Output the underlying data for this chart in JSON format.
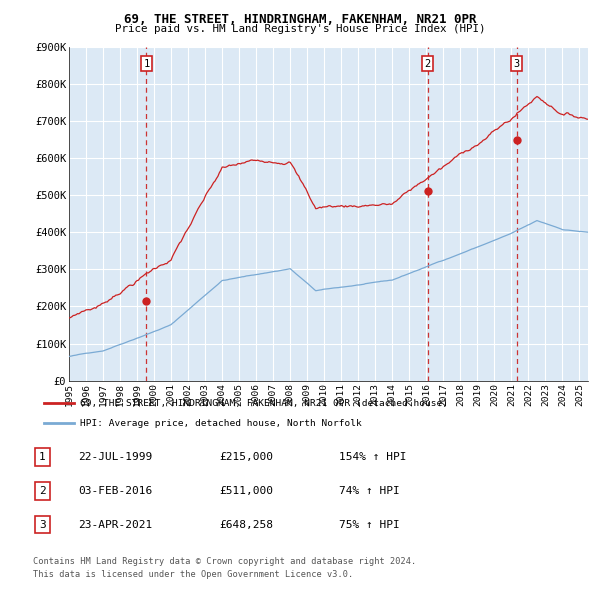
{
  "title1": "69, THE STREET, HINDRINGHAM, FAKENHAM, NR21 0PR",
  "title2": "Price paid vs. HM Land Registry's House Price Index (HPI)",
  "background_color": "#ffffff",
  "plot_bg_color": "#dce9f5",
  "grid_color": "#ffffff",
  "hpi_line_color": "#7aaad4",
  "price_line_color": "#cc2222",
  "marker_color": "#cc2222",
  "vline_color": "#cc3333",
  "sale_dates": [
    1999.55,
    2016.08,
    2021.31
  ],
  "sale_values": [
    215000,
    511000,
    648258
  ],
  "sale_labels": [
    "1",
    "2",
    "3"
  ],
  "ylim": [
    0,
    900000
  ],
  "xlim_start": 1995.0,
  "xlim_end": 2025.5,
  "yticks": [
    0,
    100000,
    200000,
    300000,
    400000,
    500000,
    600000,
    700000,
    800000,
    900000
  ],
  "ytick_labels": [
    "£0",
    "£100K",
    "£200K",
    "£300K",
    "£400K",
    "£500K",
    "£600K",
    "£700K",
    "£800K",
    "£900K"
  ],
  "xticks": [
    1995,
    1996,
    1997,
    1998,
    1999,
    2000,
    2001,
    2002,
    2003,
    2004,
    2005,
    2006,
    2007,
    2008,
    2009,
    2010,
    2011,
    2012,
    2013,
    2014,
    2015,
    2016,
    2017,
    2018,
    2019,
    2020,
    2021,
    2022,
    2023,
    2024,
    2025
  ],
  "legend_line1": "69, THE STREET, HINDRINGHAM, FAKENHAM, NR21 0PR (detached house)",
  "legend_line2": "HPI: Average price, detached house, North Norfolk",
  "table_rows": [
    [
      "1",
      "22-JUL-1999",
      "£215,000",
      "154% ↑ HPI"
    ],
    [
      "2",
      "03-FEB-2016",
      "£511,000",
      "74% ↑ HPI"
    ],
    [
      "3",
      "23-APR-2021",
      "£648,258",
      "75% ↑ HPI"
    ]
  ],
  "footnote1": "Contains HM Land Registry data © Crown copyright and database right 2024.",
  "footnote2": "This data is licensed under the Open Government Licence v3.0."
}
